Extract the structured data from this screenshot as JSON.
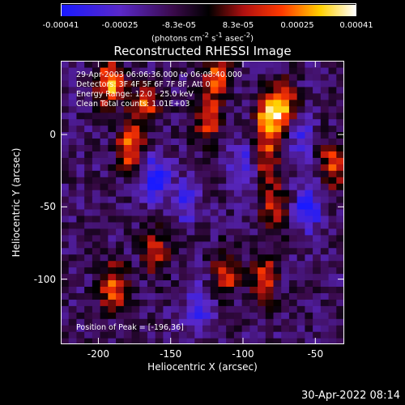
{
  "colorbar": {
    "ticks": [
      "-0.00041",
      "-0.00025",
      "-8.3e-05",
      "8.3e-05",
      "0.00025",
      "0.00041"
    ],
    "units_prefix": "(photons cm",
    "units_exp1": "-2",
    "units_mid1": " s",
    "units_exp2": "-1",
    "units_mid2": " asec",
    "units_exp3": "-2",
    "units_suffix": ")",
    "range": [
      -0.00041,
      0.00041
    ]
  },
  "chart_data": {
    "type": "heatmap",
    "title": "Reconstructed RHESSI Image",
    "xlabel": "Heliocentric X (arcsec)",
    "ylabel": "Heliocentric Y (arcsec)",
    "xlim": [
      -226,
      -30
    ],
    "ylim": [
      -145,
      51
    ],
    "xticks": [
      -200,
      -150,
      -100,
      -50
    ],
    "yticks": [
      0,
      -50,
      -100
    ],
    "colormap": "blue-purple-red-yellow-white",
    "annotations": [
      "29-Apr-2003 06:06:36.000 to 06:08:40.000",
      "Detectors: 3F 4F 5F 6F 7F 8F, Att 0",
      "Energy Range: 12.0 - 25.0 keV",
      "Clean      Total counts: 1.01E+03"
    ],
    "peak_text": "Position of Peak = [-196,36]",
    "peak_position": [
      -196,
      36
    ],
    "peak_value": 0.00041,
    "bright_regions": [
      {
        "x": -192,
        "y": 36,
        "value": 0.0004
      },
      {
        "x": -178,
        "y": -10,
        "value": 0.00035
      },
      {
        "x": -168,
        "y": 20,
        "value": 0.0003
      },
      {
        "x": -125,
        "y": 10,
        "value": 0.0003
      },
      {
        "x": -118,
        "y": 40,
        "value": 0.00035
      },
      {
        "x": -82,
        "y": 12,
        "value": 0.0004
      },
      {
        "x": -72,
        "y": 20,
        "value": 0.00035
      },
      {
        "x": -84,
        "y": -15,
        "value": 0.00025
      },
      {
        "x": -78,
        "y": -50,
        "value": 0.0003
      },
      {
        "x": -38,
        "y": -20,
        "value": 0.0003
      },
      {
        "x": -190,
        "y": -105,
        "value": 0.00035
      },
      {
        "x": -112,
        "y": -95,
        "value": 0.0003
      },
      {
        "x": -85,
        "y": -100,
        "value": 0.0003
      },
      {
        "x": -160,
        "y": -80,
        "value": 0.00025
      }
    ],
    "dim_regions": [
      {
        "x": -160,
        "y": -30,
        "value": -0.0003
      },
      {
        "x": -140,
        "y": -45,
        "value": -0.0002
      },
      {
        "x": -100,
        "y": -20,
        "value": -0.0002
      },
      {
        "x": -55,
        "y": -50,
        "value": -0.0003
      },
      {
        "x": -60,
        "y": -5,
        "value": -0.0002
      },
      {
        "x": -130,
        "y": -120,
        "value": -0.0002
      }
    ]
  },
  "timestamp": "30-Apr-2022 08:14"
}
